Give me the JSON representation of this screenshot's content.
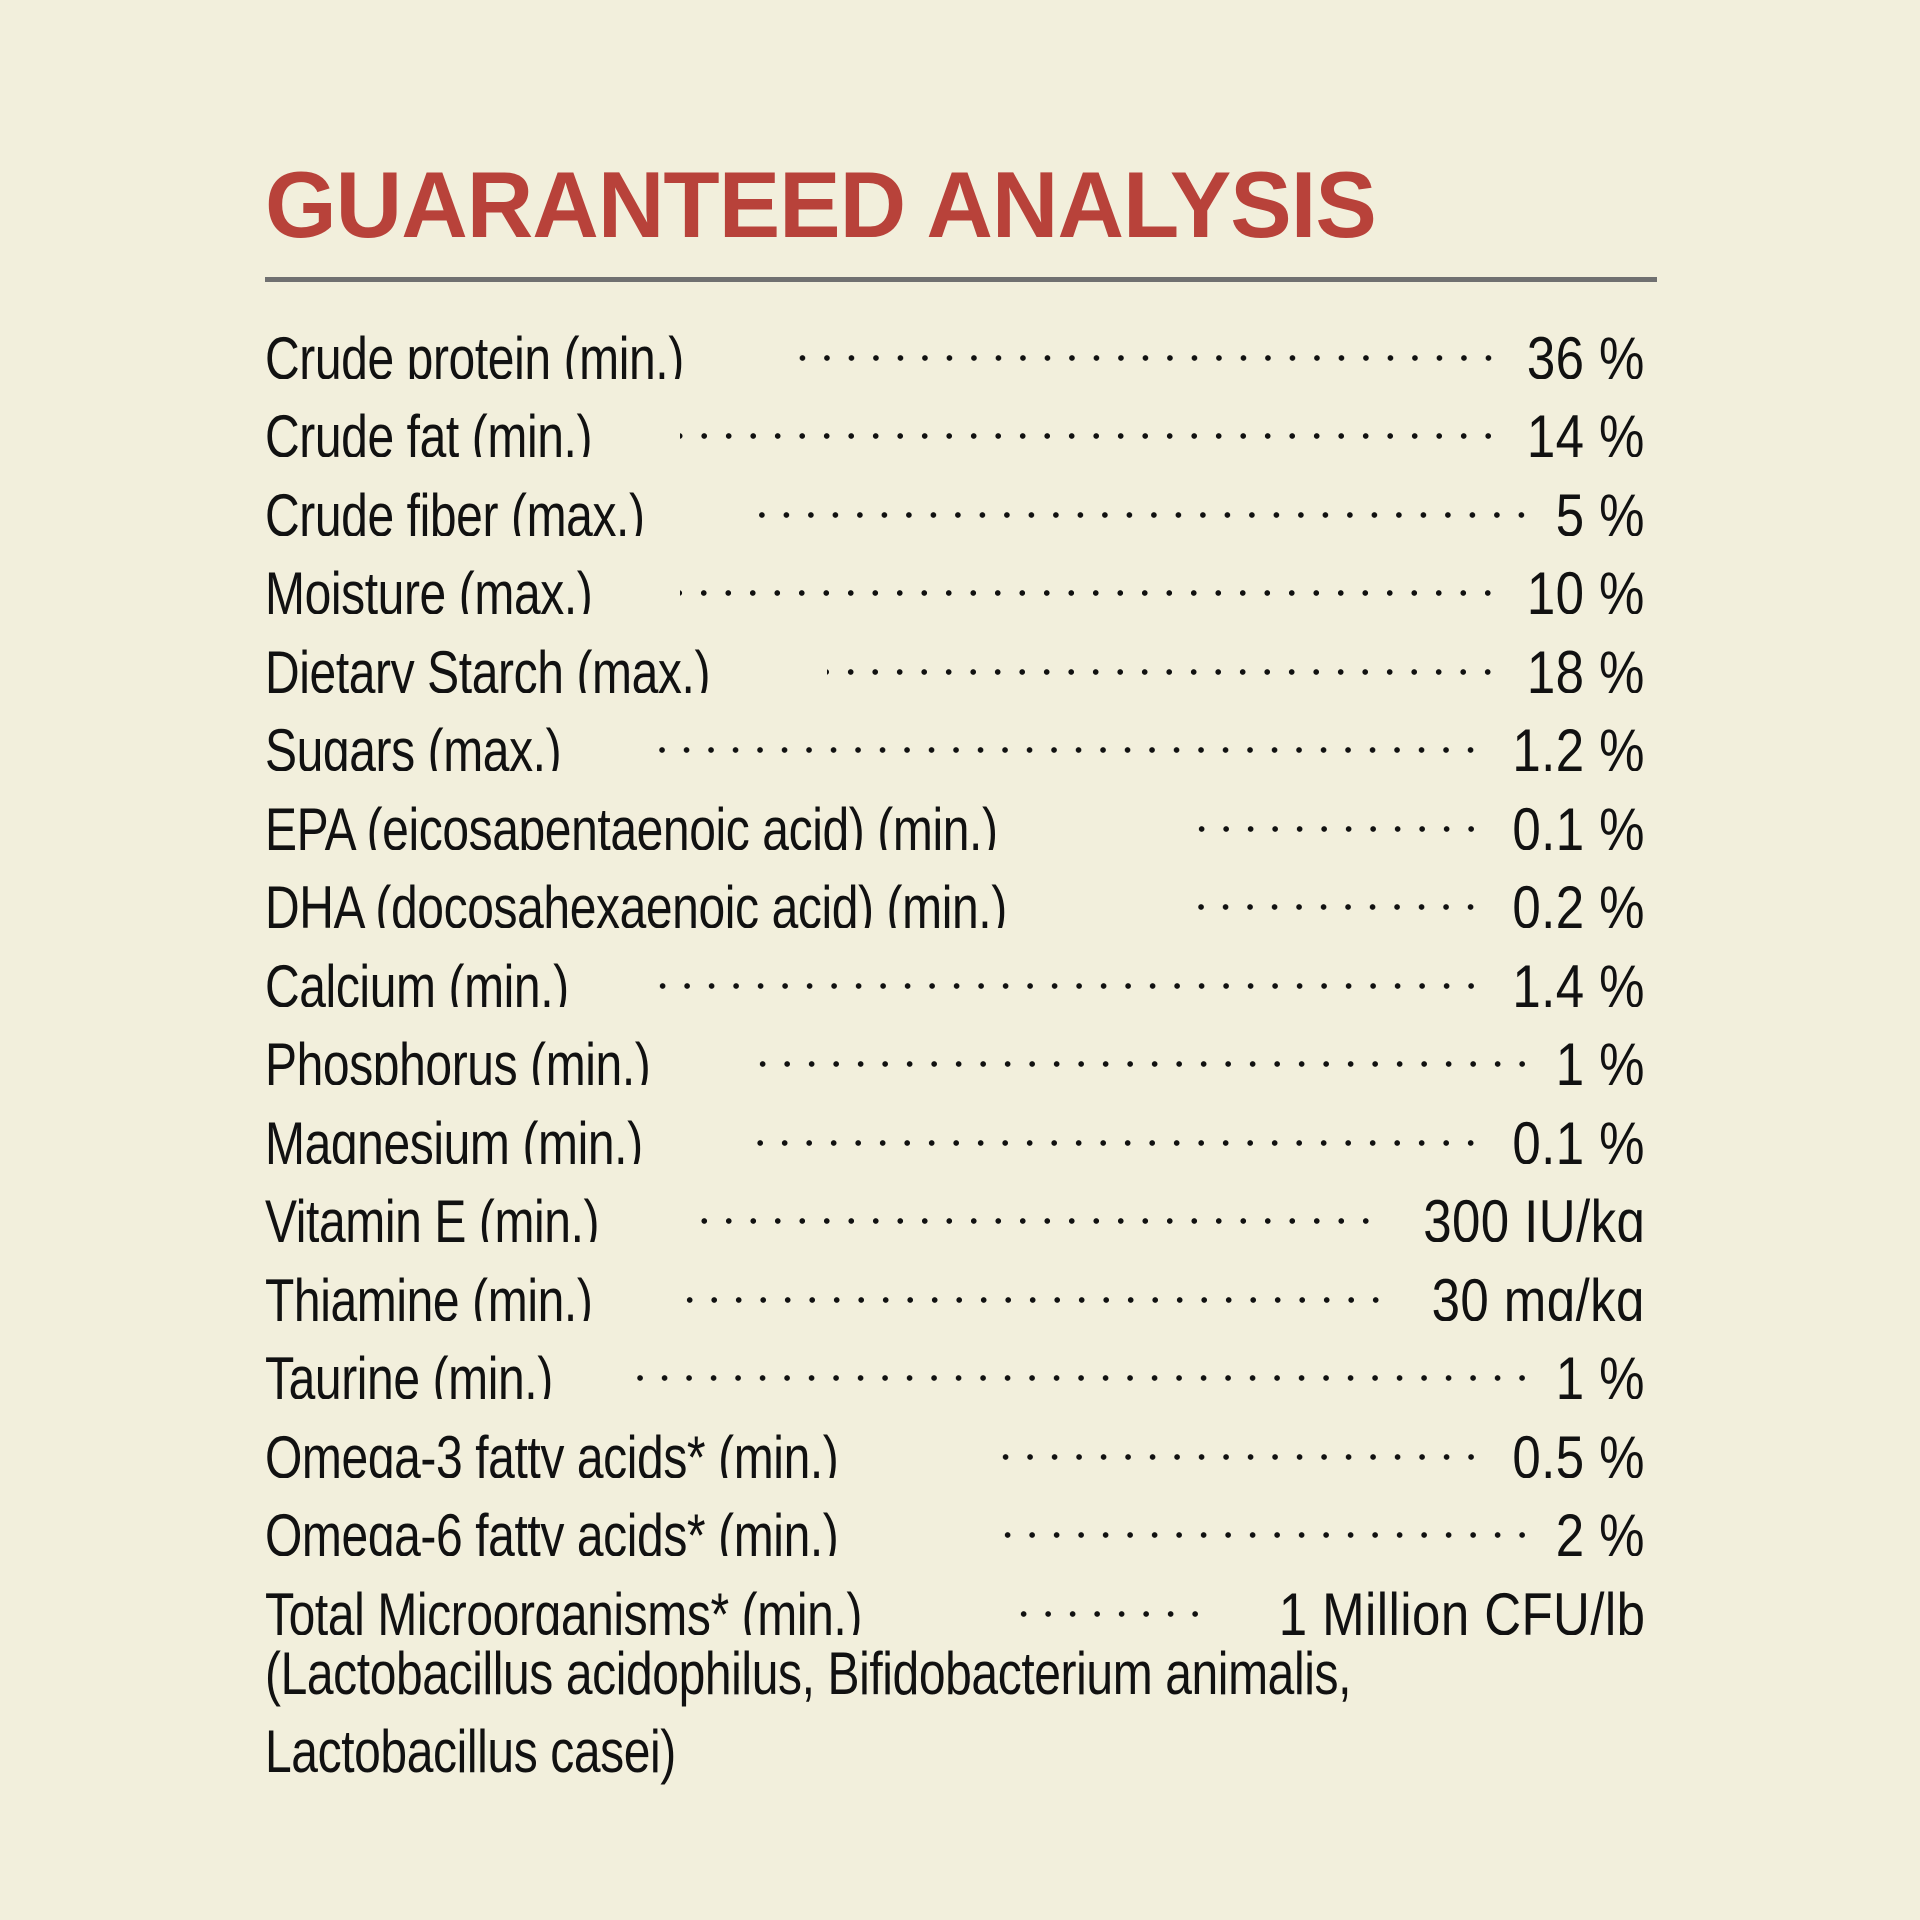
{
  "document": {
    "title": "GUARANTEED ANALYSIS",
    "colors": {
      "background": "#f2efdc",
      "heading": "#b8423a",
      "rule": "#707070",
      "text": "#111111"
    },
    "rows": [
      {
        "label": "Crude protein (min.)",
        "value": "36 %"
      },
      {
        "label": "Crude fat (min.)",
        "value": "14 %"
      },
      {
        "label": "Crude fiber (max.)",
        "value": "5 %"
      },
      {
        "label": "Moisture (max.)",
        "value": "10 %"
      },
      {
        "label": "Dietary Starch (max.)",
        "value": "18 %"
      },
      {
        "label": "Sugars (max.)",
        "value": "1.2 %"
      },
      {
        "label": "EPA (eicosapentaenoic acid) (min.)",
        "value": "0.1 %"
      },
      {
        "label": "DHA (docosahexaenoic acid) (min.)",
        "value": "0.2 %"
      },
      {
        "label": "Calcium (min.)",
        "value": "1.4 %"
      },
      {
        "label": "Phosphorus (min.)",
        "value": "1 %"
      },
      {
        "label": "Magnesium (min.)",
        "value": "0.1 %"
      },
      {
        "label": "Vitamin E (min.)",
        "value": "300 IU/kg"
      },
      {
        "label": "Thiamine (min.)",
        "value": "30 mg/kg"
      },
      {
        "label": "Taurine (min.)",
        "value": "1 %"
      },
      {
        "label": "Omega-3 fatty acids* (min.)",
        "value": "0.5 %"
      },
      {
        "label": "Omega-6 fatty acids* (min.)",
        "value": "2 %"
      },
      {
        "label": "Total Microorganisms* (min.)",
        "value": "1 Million CFU/lb"
      }
    ],
    "notes": [
      "(Lactobacillus acidophilus, Bifidobacterium animalis,",
      "Lactobacillus casei)"
    ]
  }
}
